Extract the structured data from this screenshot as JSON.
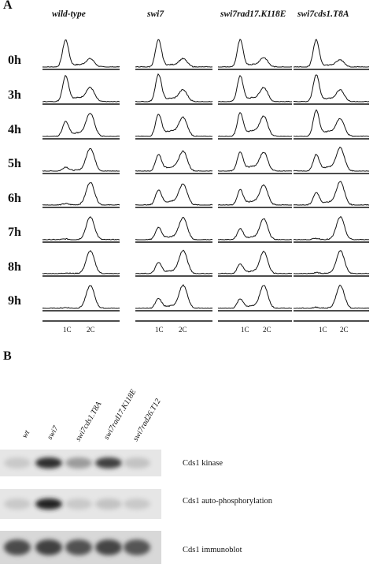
{
  "panel_a": {
    "label": "A",
    "columns": [
      "wild-type",
      "swi7",
      "swi7rad17.K118E",
      "swi7cds1.T8A"
    ],
    "timepoints": [
      "0h",
      "3h",
      "4h",
      "5h",
      "6h",
      "7h",
      "8h",
      "9h"
    ],
    "tick_1c": "1C",
    "tick_2c": "2C"
  },
  "panel_b": {
    "label": "B",
    "lanes": [
      "wt",
      "swi7",
      "swi7cds1.T8A",
      "swi7rad17.K118E",
      "swi7rad26.T12"
    ],
    "rows": [
      {
        "label": "Cds1 kinase",
        "intensities": [
          0.12,
          0.9,
          0.35,
          0.8,
          0.15
        ]
      },
      {
        "label": "Cds1 auto-phosphorylation",
        "intensities": [
          0.12,
          0.95,
          0.12,
          0.15,
          0.12
        ]
      },
      {
        "label": "Cds1 immunoblot",
        "intensities": [
          0.75,
          0.8,
          0.72,
          0.78,
          0.7
        ]
      }
    ]
  }
}
